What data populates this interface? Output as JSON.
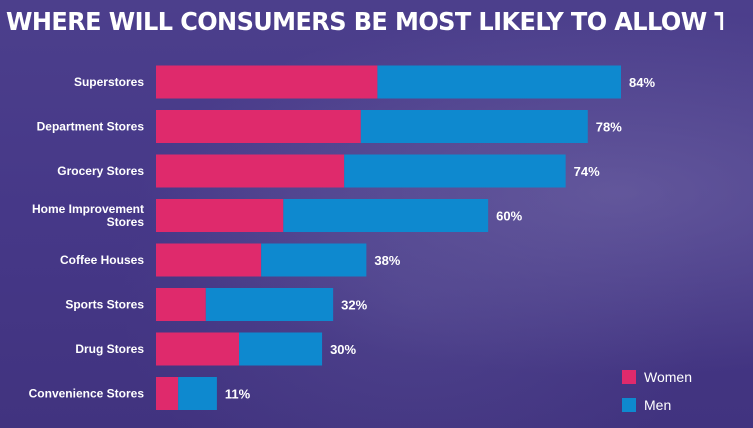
{
  "title": "WHERE WILL CONSUMERS BE MOST LIKELY TO ALLOW TRACKING?",
  "colors": {
    "women": "#df2a6c",
    "men": "#0e89cf",
    "background": "#473a88",
    "text": "#ffffff"
  },
  "chart_data": {
    "type": "bar",
    "orientation": "horizontal",
    "stacked": true,
    "title": "WHERE WILL CONSUMERS BE MOST LIKELY TO ALLOW TRACKING?",
    "categories": [
      "Superstores",
      "Department Stores",
      "Grocery Stores",
      "Home Improvement Stores",
      "Coffee Houses",
      "Sports Stores",
      "Drug Stores",
      "Convenience Stores"
    ],
    "totals": [
      84,
      78,
      74,
      60,
      38,
      32,
      30,
      11
    ],
    "total_labels": [
      "84%",
      "78%",
      "74%",
      "60%",
      "38%",
      "32%",
      "30%",
      "11%"
    ],
    "series": [
      {
        "name": "Women",
        "values": [
          40,
          37,
          34,
          23,
          19,
          9,
          15,
          4
        ]
      },
      {
        "name": "Men",
        "values": [
          44,
          41,
          40,
          37,
          19,
          23,
          15,
          7
        ]
      }
    ],
    "legend": [
      "Women",
      "Men"
    ],
    "legend_position": "bottom-right",
    "grid": false
  }
}
